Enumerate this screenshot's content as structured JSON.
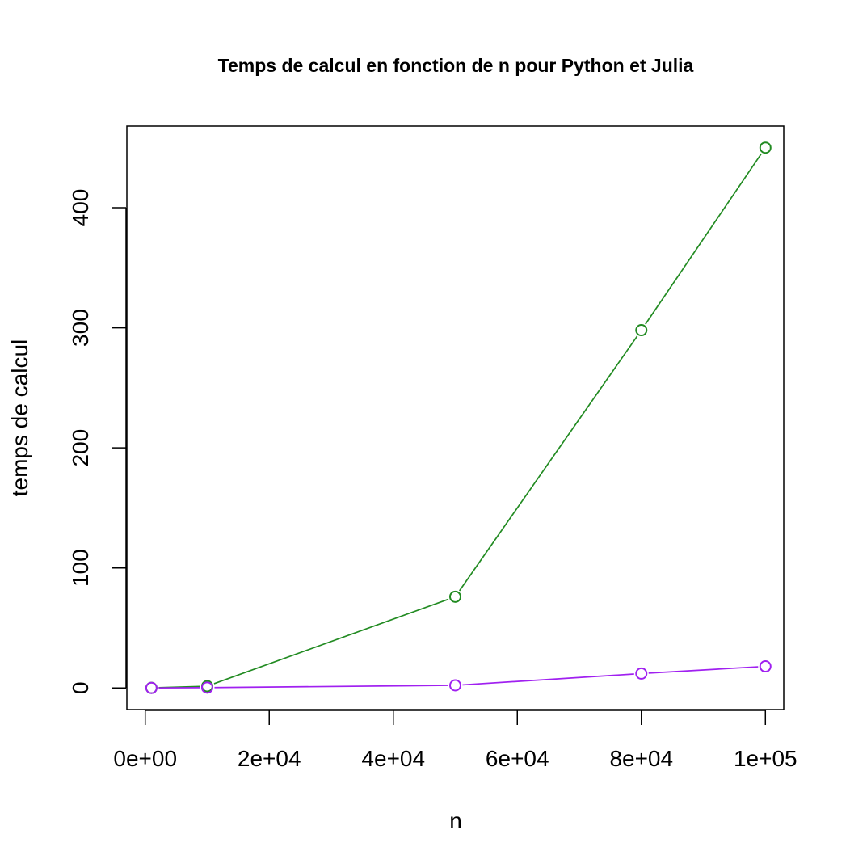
{
  "chart_data": {
    "type": "line",
    "title": "Temps de calcul en fonction de n pour Python et Julia",
    "xlabel": "n",
    "ylabel": "temps de calcul",
    "x": [
      1000,
      10000,
      50000,
      80000,
      100000
    ],
    "xlim": [
      -2960,
      102960
    ],
    "ylim": [
      -18,
      468
    ],
    "x_ticks": [
      0,
      20000,
      40000,
      60000,
      80000,
      100000
    ],
    "x_tick_labels": [
      "0e+00",
      "2e+04",
      "4e+04",
      "6e+04",
      "8e+04",
      "1e+05"
    ],
    "y_ticks": [
      0,
      100,
      200,
      300,
      400
    ],
    "y_tick_labels": [
      "0",
      "100",
      "200",
      "300",
      "400"
    ],
    "grid": false,
    "legend": "none",
    "marker": "open-circle",
    "series": [
      {
        "color": "#228B22",
        "values": [
          0.05,
          1.5,
          76,
          298,
          450
        ]
      },
      {
        "color": "#A020F0",
        "values": [
          0.01,
          0.3,
          2.2,
          12,
          18
        ]
      }
    ]
  }
}
